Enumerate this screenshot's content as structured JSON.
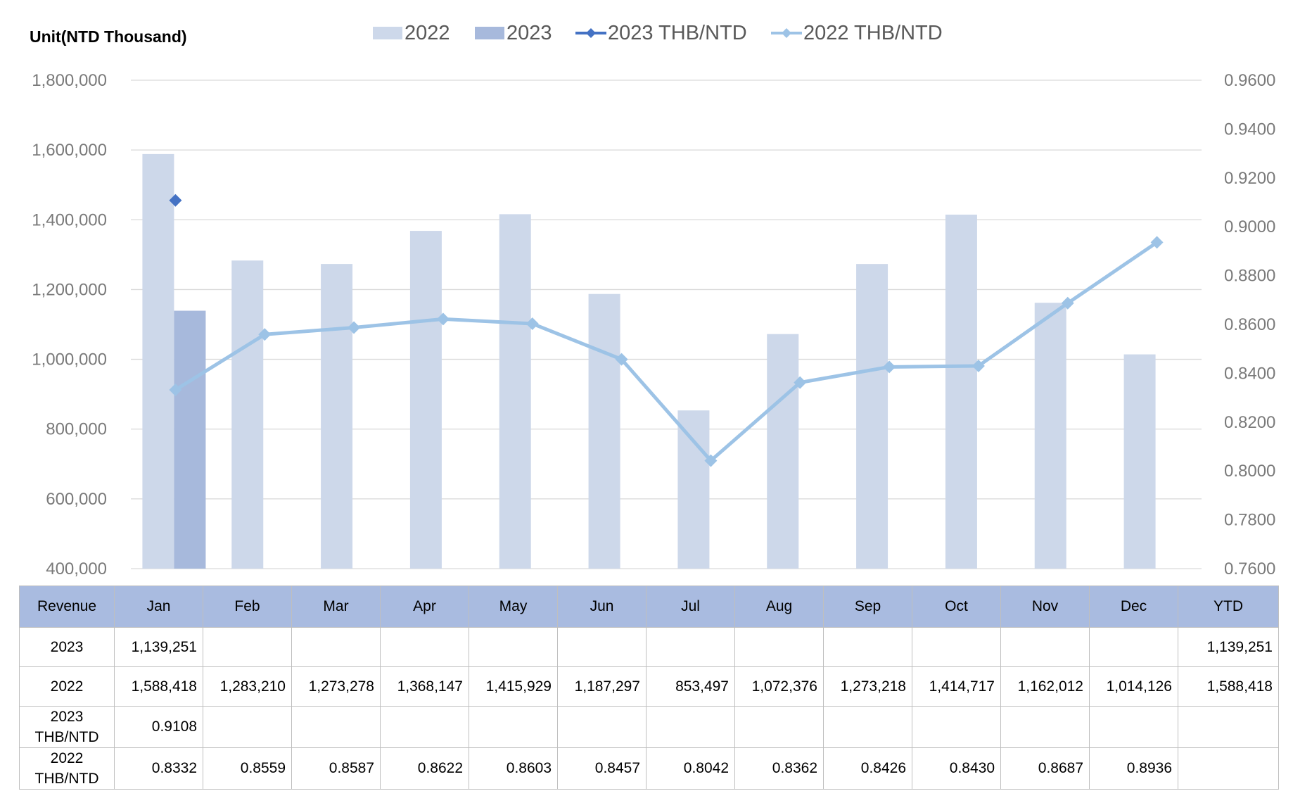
{
  "unit_label": "Unit(NTD  Thousand)",
  "colors": {
    "bar_2022": "#cdd8ea",
    "bar_2023": "#a7b9dc",
    "line_2023": "#4472c4",
    "line_2022": "#9dc3e6",
    "grid": "#d9d9d9",
    "header_bg": "#a9bbe0"
  },
  "chart_data": {
    "type": "bar",
    "categories": [
      "Jan",
      "Feb",
      "Mar",
      "Apr",
      "May",
      "Jun",
      "Jul",
      "Aug",
      "Sep",
      "Oct",
      "Nov",
      "Dec"
    ],
    "series": [
      {
        "name": "2022",
        "kind": "bar",
        "axis": "left",
        "values": [
          1588418,
          1283210,
          1273278,
          1368147,
          1415929,
          1187297,
          853497,
          1072376,
          1273218,
          1414717,
          1162012,
          1014126
        ]
      },
      {
        "name": "2023",
        "kind": "bar",
        "axis": "left",
        "values": [
          1139251,
          null,
          null,
          null,
          null,
          null,
          null,
          null,
          null,
          null,
          null,
          null
        ]
      },
      {
        "name": "2023 THB/NTD",
        "kind": "line",
        "axis": "right",
        "values": [
          0.9108,
          null,
          null,
          null,
          null,
          null,
          null,
          null,
          null,
          null,
          null,
          null
        ]
      },
      {
        "name": "2022 THB/NTD",
        "kind": "line",
        "axis": "right",
        "values": [
          0.8332,
          0.8559,
          0.8587,
          0.8622,
          0.8603,
          0.8457,
          0.8042,
          0.8362,
          0.8426,
          0.843,
          0.8687,
          0.8936
        ]
      }
    ],
    "ylim": [
      400000,
      1800000
    ],
    "y2lim": [
      0.76,
      0.96
    ],
    "yticks": [
      "1,800,000",
      "1,600,000",
      "1,400,000",
      "1,200,000",
      "1,000,000",
      "800,000",
      "600,000",
      "400,000"
    ],
    "y2ticks": [
      "0.9600",
      "0.9400",
      "0.9200",
      "0.9000",
      "0.8800",
      "0.8600",
      "0.8400",
      "0.8200",
      "0.8000",
      "0.7800",
      "0.7600"
    ],
    "legend_position": "top",
    "grid": true
  },
  "table": {
    "header": [
      "Revenue",
      "Jan",
      "Feb",
      "Mar",
      "Apr",
      "May",
      "Jun",
      "Jul",
      "Aug",
      "Sep",
      "Oct",
      "Nov",
      "Dec",
      "YTD"
    ],
    "rows": [
      {
        "label": [
          "2023"
        ],
        "cells": [
          "1,139,251",
          "",
          "",
          "",
          "",
          "",
          "",
          "",
          "",
          "",
          "",
          "",
          "1,139,251"
        ]
      },
      {
        "label": [
          "2022"
        ],
        "cells": [
          "1,588,418",
          "1,283,210",
          "1,273,278",
          "1,368,147",
          "1,415,929",
          "1,187,297",
          "853,497",
          "1,072,376",
          "1,273,218",
          "1,414,717",
          "1,162,012",
          "1,014,126",
          "1,588,418"
        ]
      },
      {
        "label": [
          "2023",
          "THB/NTD"
        ],
        "cells": [
          "0.9108",
          "",
          "",
          "",
          "",
          "",
          "",
          "",
          "",
          "",
          "",
          "",
          ""
        ]
      },
      {
        "label": [
          "2022",
          "THB/NTD"
        ],
        "cells": [
          "0.8332",
          "0.8559",
          "0.8587",
          "0.8622",
          "0.8603",
          "0.8457",
          "0.8042",
          "0.8362",
          "0.8426",
          "0.8430",
          "0.8687",
          "0.8936",
          ""
        ]
      }
    ]
  }
}
